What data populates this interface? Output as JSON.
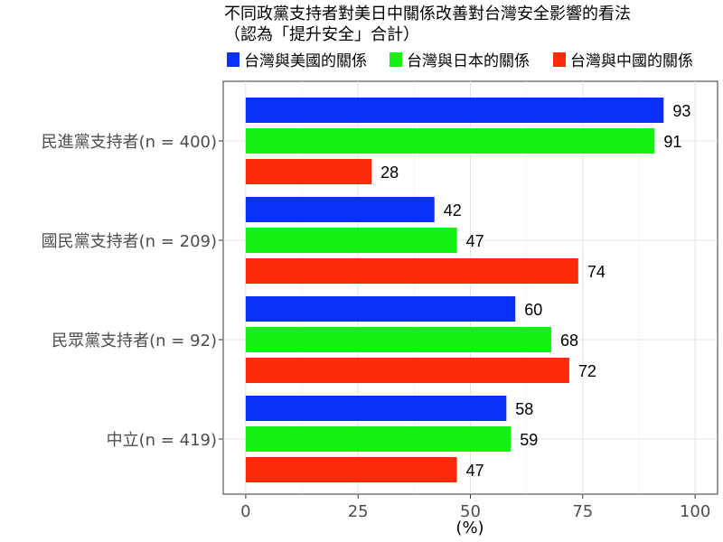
{
  "chart_data": {
    "type": "bar",
    "orientation": "horizontal",
    "title_lines": [
      "不同政黨支持者對美日中關係改善對台灣安全影響的看法",
      "（認為「提升安全」合計）"
    ],
    "xlabel": "(%)",
    "ylabel": "",
    "xlim": [
      -5,
      105
    ],
    "xticks": [
      0,
      25,
      50,
      75,
      100
    ],
    "grid": true,
    "legend_position": "top",
    "categories": [
      "民進黨支持者(n = 400)",
      "國民黨支持者(n = 209)",
      "民眾黨支持者(n = 92)",
      "中立(n = 419)"
    ],
    "series": [
      {
        "name": "台灣與美國的關係",
        "color": "#0a2ff5",
        "values": [
          93,
          42,
          60,
          58
        ]
      },
      {
        "name": "台灣與日本的關係",
        "color": "#14f214",
        "values": [
          91,
          47,
          68,
          59
        ]
      },
      {
        "name": "台灣與中國的關係",
        "color": "#fa2a0a",
        "values": [
          28,
          74,
          72,
          47
        ]
      }
    ]
  }
}
